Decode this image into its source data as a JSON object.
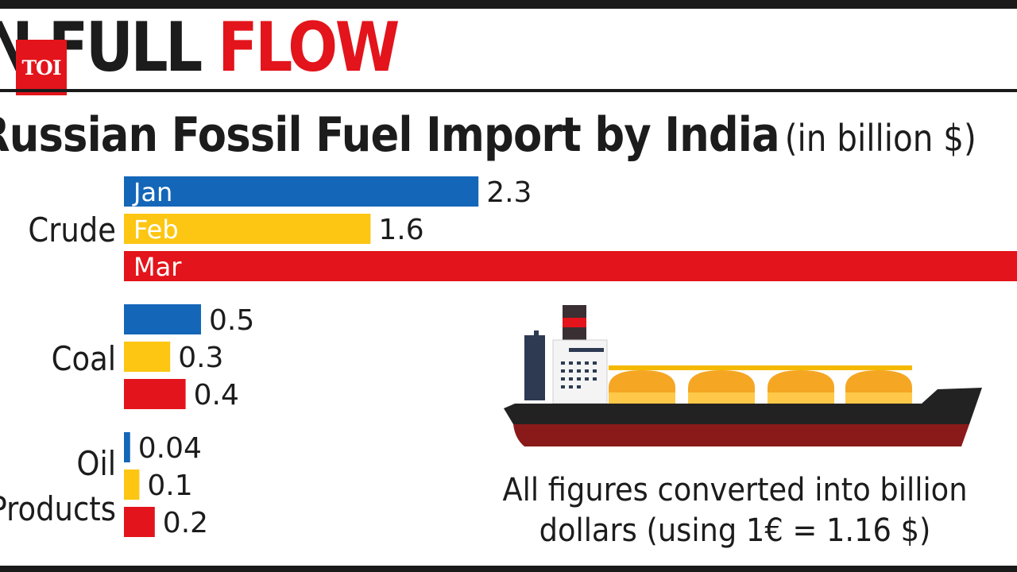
{
  "header": {
    "title_dark": "N FULL ",
    "title_red": "FLOW",
    "logo": "TOI"
  },
  "subtitle": {
    "main": "Russian Fossil Fuel Import by India",
    "unit": "(in billion $)"
  },
  "footnote": {
    "line1": "All figures converted into billion",
    "line2": "dollars (using 1€ = 1.16 $)"
  },
  "colors": {
    "jan": "#1466b8",
    "feb": "#fcc612",
    "mar": "#e3141b",
    "brand_red": "#e3141b"
  },
  "chart_data": {
    "type": "bar",
    "orientation": "horizontal",
    "title": "Russian Fossil Fuel Import by India",
    "ylabel": "",
    "xlabel": "",
    "unit": "(in billion $)",
    "months": [
      "Jan",
      "Feb",
      "Mar"
    ],
    "groups": [
      {
        "name": "Crude",
        "label_lines": [
          "Crude"
        ],
        "values": [
          2.3,
          1.6,
          null
        ],
        "labels": [
          "2.3",
          "1.6",
          ""
        ]
      },
      {
        "name": "Coal",
        "label_lines": [
          "Coal"
        ],
        "values": [
          0.5,
          0.3,
          0.4
        ],
        "labels": [
          "0.5",
          "0.3",
          "0.4"
        ]
      },
      {
        "name": "Oil Products",
        "label_lines": [
          "Oil",
          "Products"
        ],
        "values": [
          0.04,
          0.1,
          0.2
        ],
        "labels": [
          "0.04",
          "0.1",
          "0.2"
        ]
      }
    ],
    "grid": false,
    "legend": "none"
  },
  "illustration": {
    "icon": "lng-tanker-ship-icon"
  }
}
